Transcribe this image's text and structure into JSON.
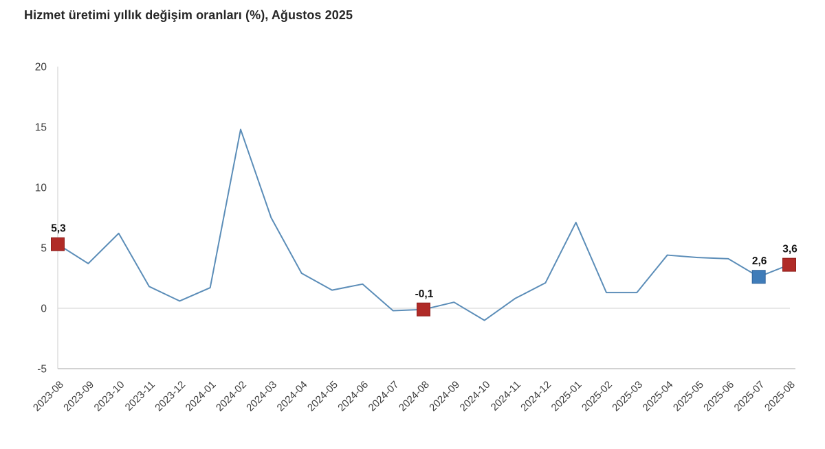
{
  "chart_data": {
    "type": "line",
    "title": "Hizmet üretimi yıllık değişim oranları (%), Ağustos 2025",
    "categories": [
      "2023-08",
      "2023-09",
      "2023-10",
      "2023-11",
      "2023-12",
      "2024-01",
      "2024-02",
      "2024-03",
      "2024-04",
      "2024-05",
      "2024-06",
      "2024-07",
      "2024-08",
      "2024-09",
      "2024-10",
      "2024-11",
      "2024-12",
      "2025-01",
      "2025-02",
      "2025-03",
      "2025-04",
      "2025-05",
      "2025-06",
      "2025-07",
      "2025-08"
    ],
    "values": [
      5.3,
      3.7,
      6.2,
      1.8,
      0.6,
      1.7,
      14.8,
      7.5,
      2.9,
      1.5,
      2.0,
      -0.2,
      -0.1,
      0.5,
      -1.0,
      0.8,
      2.1,
      7.1,
      1.3,
      1.3,
      4.4,
      4.2,
      4.1,
      2.6,
      3.6
    ],
    "yticks": [
      20,
      15,
      10,
      5,
      0,
      -5
    ],
    "ylim": [
      -5,
      20
    ],
    "grid": false,
    "legend": "none",
    "highlights": [
      {
        "index": 0,
        "label": "5,3",
        "color": "#b02b27",
        "stroke": "#8f1f1c"
      },
      {
        "index": 12,
        "label": "-0,1",
        "color": "#b02b27",
        "stroke": "#8f1f1c"
      },
      {
        "index": 23,
        "label": "2,6",
        "color": "#3f7cb9",
        "stroke": "#2f639c"
      },
      {
        "index": 24,
        "label": "3,6",
        "color": "#b02b27",
        "stroke": "#8f1f1c"
      }
    ],
    "colors": {
      "line": "#5b8db8",
      "axis": "#d9d9d9",
      "axis_bottom": "#c4c4c4",
      "tick_text": "#3d3d3d",
      "point_label": "#111111"
    }
  }
}
